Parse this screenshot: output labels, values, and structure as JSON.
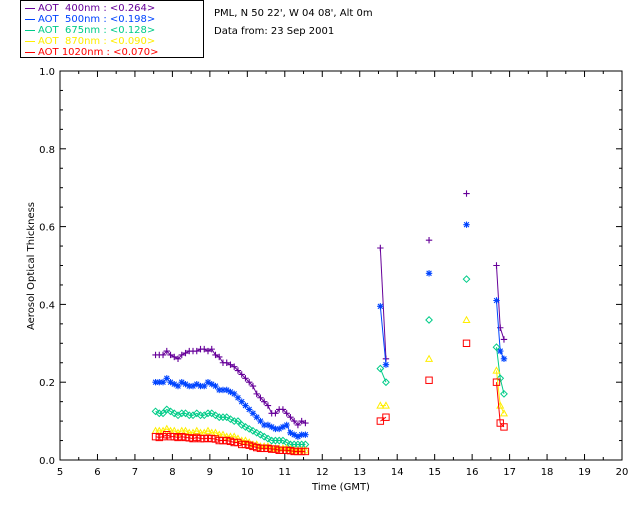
{
  "info": {
    "location": "PML, N 50 22', W 04 08', Alt 0m",
    "date": "Data from: 23 Sep 2001"
  },
  "chart_data": {
    "type": "line",
    "xlabel": "Time (GMT)",
    "ylabel": "Aerosol Optical Thickness",
    "xlim": [
      5,
      20
    ],
    "ylim": [
      0.0,
      1.0
    ],
    "xticks": [
      "5",
      "6",
      "7",
      "8",
      "9",
      "10",
      "11",
      "12",
      "13",
      "14",
      "15",
      "16",
      "17",
      "18",
      "19",
      "20"
    ],
    "yticks": [
      "0.0",
      "0.2",
      "0.4",
      "0.6",
      "0.8",
      "1.0"
    ],
    "legend_position": "top-left",
    "segments": [
      [
        7.55,
        11.55
      ],
      [
        13.5,
        13.75
      ],
      [
        14.85,
        14.85
      ],
      [
        15.85,
        15.85
      ],
      [
        16.6,
        16.9
      ]
    ],
    "series": [
      {
        "name": "AOT  400nm : <0.264>",
        "color": "#660099",
        "marker": "plus",
        "x": [
          7.55,
          7.65,
          7.75,
          7.85,
          7.95,
          8.05,
          8.15,
          8.25,
          8.35,
          8.45,
          8.55,
          8.65,
          8.75,
          8.85,
          8.95,
          9.05,
          9.15,
          9.25,
          9.35,
          9.45,
          9.55,
          9.65,
          9.75,
          9.85,
          9.95,
          10.05,
          10.15,
          10.25,
          10.35,
          10.45,
          10.55,
          10.65,
          10.75,
          10.85,
          10.95,
          11.05,
          11.15,
          11.25,
          11.35,
          11.45,
          11.55,
          13.55,
          13.7,
          14.85,
          15.85,
          16.65,
          16.75,
          16.85
        ],
        "y": [
          0.27,
          0.27,
          0.27,
          0.28,
          0.27,
          0.265,
          0.26,
          0.27,
          0.275,
          0.28,
          0.28,
          0.28,
          0.285,
          0.285,
          0.28,
          0.285,
          0.27,
          0.265,
          0.25,
          0.25,
          0.245,
          0.24,
          0.23,
          0.22,
          0.21,
          0.2,
          0.19,
          0.17,
          0.16,
          0.15,
          0.14,
          0.12,
          0.12,
          0.13,
          0.13,
          0.12,
          0.11,
          0.1,
          0.09,
          0.1,
          0.095,
          0.545,
          0.26,
          0.565,
          0.685,
          0.5,
          0.34,
          0.31
        ]
      },
      {
        "name": "AOT  500nm : <0.198>",
        "color": "#0044ff",
        "marker": "star",
        "x": [
          7.55,
          7.65,
          7.75,
          7.85,
          7.95,
          8.05,
          8.15,
          8.25,
          8.35,
          8.45,
          8.55,
          8.65,
          8.75,
          8.85,
          8.95,
          9.05,
          9.15,
          9.25,
          9.35,
          9.45,
          9.55,
          9.65,
          9.75,
          9.85,
          9.95,
          10.05,
          10.15,
          10.25,
          10.35,
          10.45,
          10.55,
          10.65,
          10.75,
          10.85,
          10.95,
          11.05,
          11.15,
          11.25,
          11.35,
          11.45,
          11.55,
          13.55,
          13.7,
          14.85,
          15.85,
          16.65,
          16.75,
          16.85
        ],
        "y": [
          0.2,
          0.2,
          0.2,
          0.21,
          0.2,
          0.195,
          0.19,
          0.2,
          0.195,
          0.19,
          0.19,
          0.195,
          0.19,
          0.19,
          0.2,
          0.195,
          0.19,
          0.18,
          0.18,
          0.18,
          0.175,
          0.17,
          0.16,
          0.15,
          0.14,
          0.13,
          0.12,
          0.11,
          0.1,
          0.09,
          0.09,
          0.085,
          0.08,
          0.08,
          0.085,
          0.09,
          0.07,
          0.065,
          0.06,
          0.065,
          0.065,
          0.395,
          0.245,
          0.48,
          0.605,
          0.41,
          0.28,
          0.26
        ]
      },
      {
        "name": "AOT  675nm : <0.128>",
        "color": "#00cc88",
        "marker": "diamond",
        "x": [
          7.55,
          7.65,
          7.75,
          7.85,
          7.95,
          8.05,
          8.15,
          8.25,
          8.35,
          8.45,
          8.55,
          8.65,
          8.75,
          8.85,
          8.95,
          9.05,
          9.15,
          9.25,
          9.35,
          9.45,
          9.55,
          9.65,
          9.75,
          9.85,
          9.95,
          10.05,
          10.15,
          10.25,
          10.35,
          10.45,
          10.55,
          10.65,
          10.75,
          10.85,
          10.95,
          11.05,
          11.15,
          11.25,
          11.35,
          11.45,
          11.55,
          13.55,
          13.7,
          14.85,
          15.85,
          16.65,
          16.75,
          16.85
        ],
        "y": [
          0.125,
          0.12,
          0.12,
          0.13,
          0.125,
          0.12,
          0.115,
          0.12,
          0.12,
          0.115,
          0.115,
          0.12,
          0.115,
          0.115,
          0.12,
          0.12,
          0.115,
          0.11,
          0.11,
          0.11,
          0.105,
          0.1,
          0.1,
          0.09,
          0.085,
          0.08,
          0.075,
          0.07,
          0.065,
          0.06,
          0.055,
          0.05,
          0.05,
          0.05,
          0.05,
          0.045,
          0.04,
          0.04,
          0.04,
          0.04,
          0.04,
          0.235,
          0.2,
          0.36,
          0.465,
          0.29,
          0.21,
          0.17
        ]
      },
      {
        "name": "AOT  870nm : <0.090>",
        "color": "#ffee00",
        "marker": "triangle",
        "x": [
          7.55,
          7.65,
          7.75,
          7.85,
          7.95,
          8.05,
          8.15,
          8.25,
          8.35,
          8.45,
          8.55,
          8.65,
          8.75,
          8.85,
          8.95,
          9.05,
          9.15,
          9.25,
          9.35,
          9.45,
          9.55,
          9.65,
          9.75,
          9.85,
          9.95,
          10.05,
          10.15,
          10.25,
          10.35,
          10.45,
          10.55,
          10.65,
          10.75,
          10.85,
          10.95,
          11.05,
          11.15,
          11.25,
          11.35,
          11.45,
          11.55,
          13.55,
          13.7,
          14.85,
          15.85,
          16.65,
          16.75,
          16.85
        ],
        "y": [
          0.075,
          0.075,
          0.075,
          0.08,
          0.075,
          0.075,
          0.07,
          0.075,
          0.075,
          0.07,
          0.07,
          0.075,
          0.07,
          0.07,
          0.075,
          0.07,
          0.07,
          0.065,
          0.065,
          0.06,
          0.06,
          0.06,
          0.055,
          0.05,
          0.05,
          0.045,
          0.04,
          0.04,
          0.035,
          0.035,
          0.035,
          0.03,
          0.03,
          0.03,
          0.03,
          0.03,
          0.028,
          0.025,
          0.025,
          0.025,
          0.025,
          0.14,
          0.14,
          0.26,
          0.36,
          0.23,
          0.14,
          0.12
        ]
      },
      {
        "name": "AOT 1020nm : <0.070>",
        "color": "#ff0000",
        "marker": "square",
        "x": [
          7.55,
          7.65,
          7.75,
          7.85,
          7.95,
          8.05,
          8.15,
          8.25,
          8.35,
          8.45,
          8.55,
          8.65,
          8.75,
          8.85,
          8.95,
          9.05,
          9.15,
          9.25,
          9.35,
          9.45,
          9.55,
          9.65,
          9.75,
          9.85,
          9.95,
          10.05,
          10.15,
          10.25,
          10.35,
          10.45,
          10.55,
          10.65,
          10.75,
          10.85,
          10.95,
          11.05,
          11.15,
          11.25,
          11.35,
          11.45,
          11.55,
          13.55,
          13.7,
          14.85,
          15.85,
          16.65,
          16.75,
          16.85
        ],
        "y": [
          0.06,
          0.058,
          0.06,
          0.065,
          0.06,
          0.06,
          0.058,
          0.06,
          0.058,
          0.057,
          0.055,
          0.058,
          0.055,
          0.055,
          0.056,
          0.055,
          0.054,
          0.05,
          0.05,
          0.05,
          0.048,
          0.045,
          0.045,
          0.04,
          0.04,
          0.038,
          0.035,
          0.032,
          0.03,
          0.03,
          0.03,
          0.028,
          0.028,
          0.025,
          0.025,
          0.025,
          0.024,
          0.022,
          0.022,
          0.022,
          0.022,
          0.1,
          0.11,
          0.205,
          0.3,
          0.2,
          0.095,
          0.085
        ]
      }
    ]
  }
}
